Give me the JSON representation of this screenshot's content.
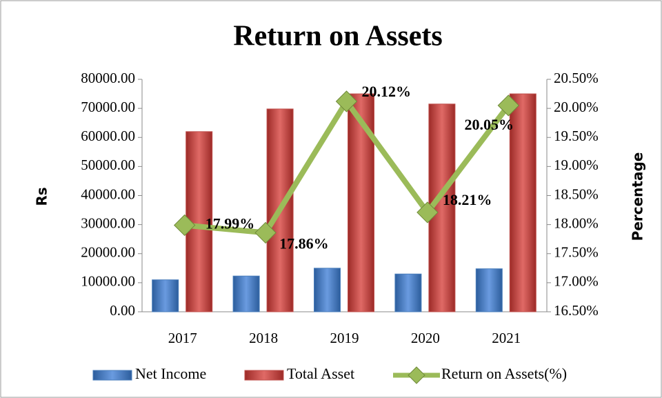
{
  "chart_data": {
    "type": "bar",
    "title": "Return on Assets",
    "y_label": "Rs",
    "y2_label": "Percentage",
    "categories": [
      "2017",
      "2018",
      "2019",
      "2020",
      "2021"
    ],
    "series": [
      {
        "name": "Net Income",
        "color": "#4a7ebb",
        "values": [
          11000,
          12300,
          15000,
          13000,
          14800
        ]
      },
      {
        "name": "Total Asset",
        "color": "#c0504d",
        "values": [
          62000,
          69800,
          75000,
          71500,
          75000
        ]
      },
      {
        "name": "Return on Assets(%)",
        "color": "#9bbb59",
        "type": "line",
        "axis": "y2",
        "values": [
          17.99,
          17.86,
          20.12,
          18.21,
          20.05
        ],
        "value_labels": [
          "17.99%",
          "17.86%",
          "20.12%",
          "18.21%",
          "20.05%"
        ]
      }
    ],
    "ylim": [
      0,
      80000
    ],
    "yticks": [
      {
        "value": 0,
        "label": "0.00"
      },
      {
        "value": 10000,
        "label": "10000.00"
      },
      {
        "value": 20000,
        "label": "20000.00"
      },
      {
        "value": 30000,
        "label": "30000.00"
      },
      {
        "value": 40000,
        "label": "40000.00"
      },
      {
        "value": 50000,
        "label": "50000.00"
      },
      {
        "value": 60000,
        "label": "60000.00"
      },
      {
        "value": 70000,
        "label": "70000.00"
      },
      {
        "value": 80000,
        "label": "80000.00"
      }
    ],
    "y2lim": [
      16.5,
      20.5
    ],
    "y2ticks": [
      {
        "value": 16.5,
        "label": "16.50%"
      },
      {
        "value": 17,
        "label": "17.00%"
      },
      {
        "value": 17.5,
        "label": "17.50%"
      },
      {
        "value": 18,
        "label": "18.00%"
      },
      {
        "value": 18.5,
        "label": "18.50%"
      },
      {
        "value": 19,
        "label": "19.00%"
      },
      {
        "value": 19.5,
        "label": "19.50%"
      },
      {
        "value": 20,
        "label": "20.00%"
      },
      {
        "value": 20.5,
        "label": "20.50%"
      }
    ],
    "legend": "bottom"
  }
}
